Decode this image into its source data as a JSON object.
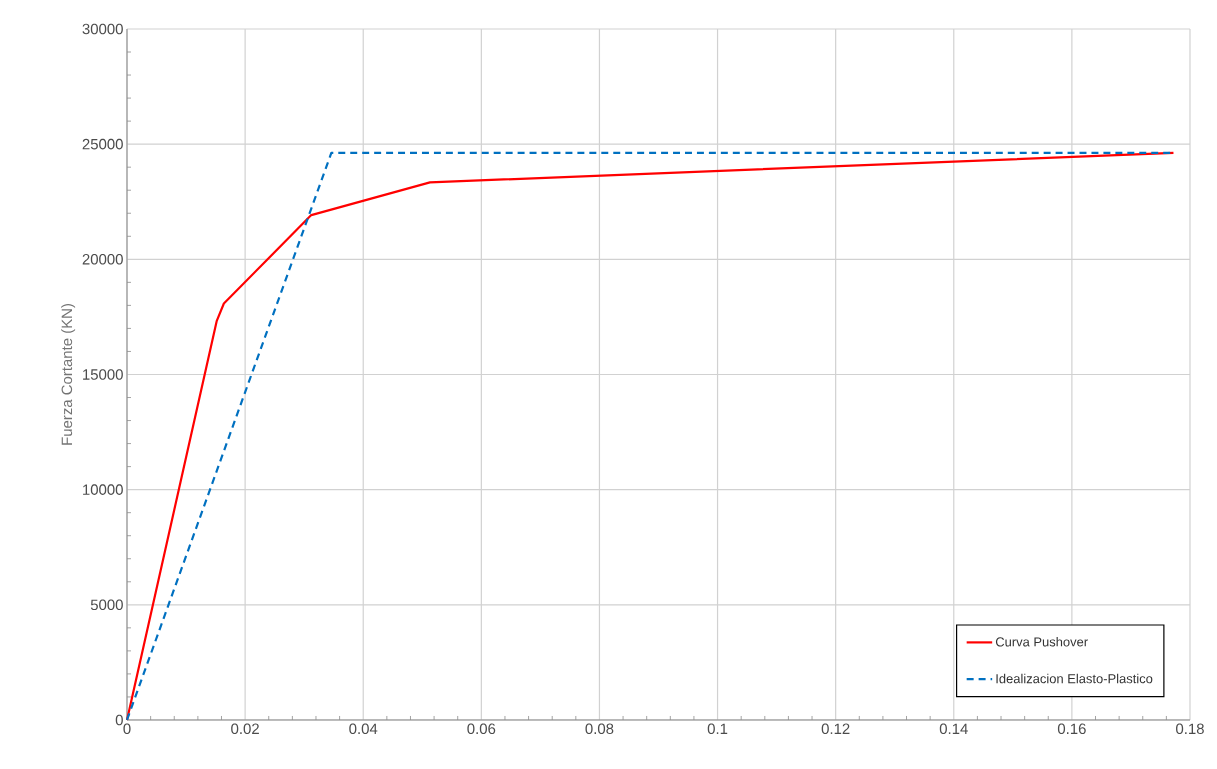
{
  "chart_data": {
    "type": "line",
    "ylabel": "Fuerza Cortante (KN)",
    "xlim": [
      0,
      0.18
    ],
    "xticks": [
      0,
      0.02,
      0.04,
      0.06,
      0.08,
      0.1,
      0.12,
      0.14,
      0.16,
      0.18
    ],
    "ylim": [
      0,
      30000
    ],
    "yticks": [
      0,
      5000,
      10000,
      15000,
      20000,
      25000,
      30000
    ],
    "grid": true,
    "legend": "bottom right",
    "series": [
      {
        "name": "Curva Pushover",
        "color": "#ff0000",
        "line_style": "solid",
        "x": [
          0,
          0.0152,
          0.0164,
          0.0312,
          0.0513,
          0.1772
        ],
        "values": [
          0,
          17330,
          18080,
          21920,
          23340,
          24620
        ]
      },
      {
        "name": "Idealizacion Elasto-Plastico",
        "color": "#0070c0",
        "line_style": "dashed",
        "x": [
          0,
          0.0346,
          0.1772
        ],
        "values": [
          0,
          24620,
          24620
        ]
      }
    ]
  }
}
